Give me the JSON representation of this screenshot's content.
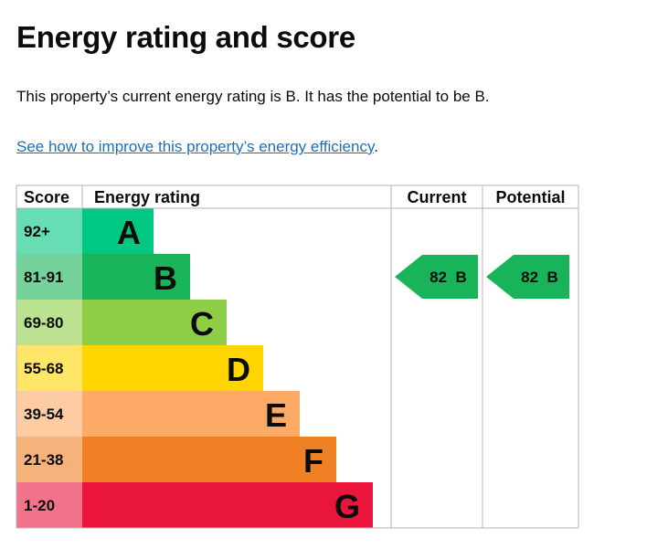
{
  "heading": "Energy rating and score",
  "summary": "This property’s current energy rating is B. It has the potential to be B.",
  "improve_link": "See how to improve this property’s energy efficiency",
  "improve_link_suffix": ".",
  "colors": {
    "A": "#00c781",
    "B": "#19b459",
    "C": "#8dce46",
    "D": "#ffd500",
    "E": "#fcaa65",
    "F": "#ef8023",
    "G": "#e9153b",
    "grid": "#b1b4b6"
  },
  "chart_data": {
    "type": "table",
    "headers": {
      "score": "Score",
      "rating": "Energy rating",
      "current": "Current",
      "potential": "Potential"
    },
    "bands": [
      {
        "letter": "A",
        "range": "92+"
      },
      {
        "letter": "B",
        "range": "81-91"
      },
      {
        "letter": "C",
        "range": "69-80"
      },
      {
        "letter": "D",
        "range": "55-68"
      },
      {
        "letter": "E",
        "range": "39-54"
      },
      {
        "letter": "F",
        "range": "21-38"
      },
      {
        "letter": "G",
        "range": "1-20"
      }
    ],
    "current": {
      "score": 82,
      "band": "B",
      "label": "82  B"
    },
    "potential": {
      "score": 82,
      "band": "B",
      "label": "82  B"
    }
  }
}
